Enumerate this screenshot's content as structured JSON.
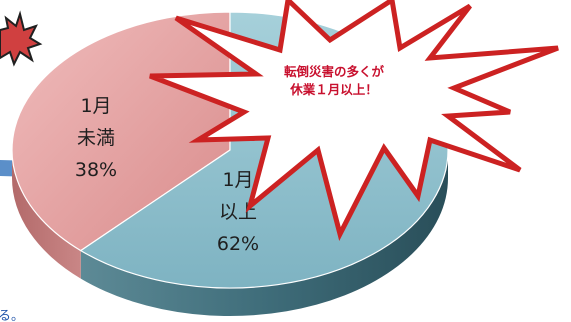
{
  "chart_data": {
    "type": "pie",
    "style": "3d-tilted",
    "slices": [
      {
        "name_line1": "1月",
        "name_line2": "未満",
        "value": 38,
        "value_label": "38%",
        "color": "#e29b9b"
      },
      {
        "name_line1": "1月",
        "name_line2": "以上",
        "value": 62,
        "value_label": "62%",
        "color": "#8fc2cf"
      }
    ],
    "callout": {
      "line1": "転倒災害の多くが",
      "line2": "休業１月以上！",
      "text_color": "#c8102e",
      "fill_color": "#ffffff",
      "outline_color": "#cc2222"
    },
    "cropped_text_fragment": "る。"
  }
}
